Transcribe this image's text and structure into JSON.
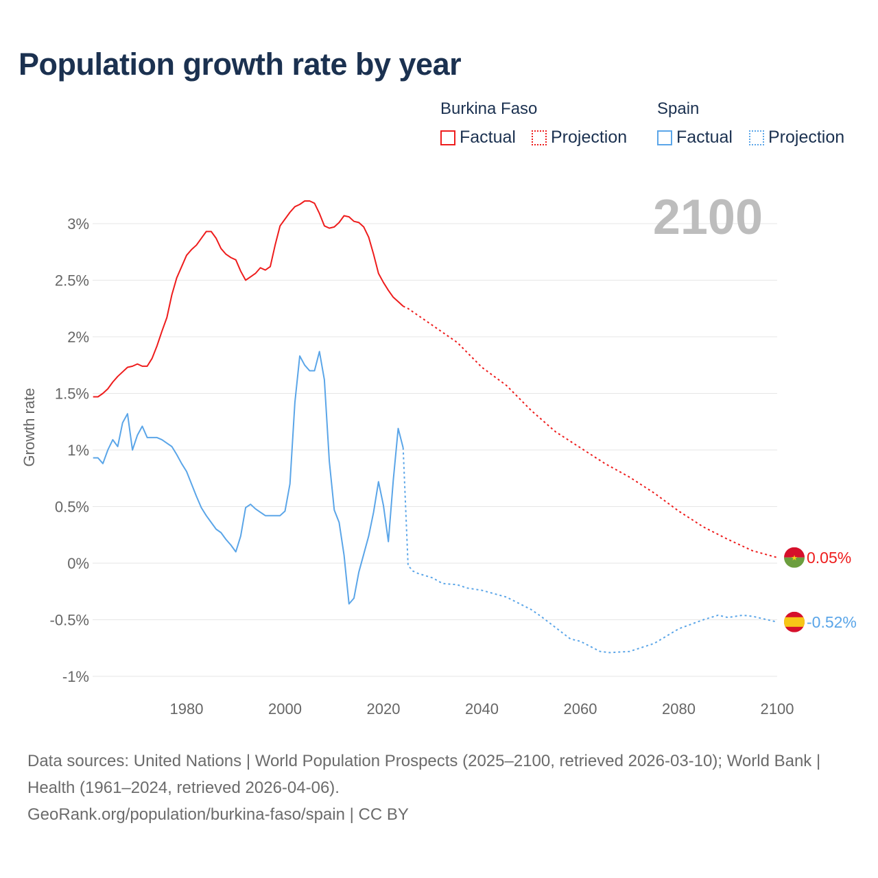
{
  "title": "Population growth rate by year",
  "legend": {
    "groups": [
      {
        "name": "Burkina Faso",
        "color": "#ee1c1c",
        "factual": "Factual",
        "projection": "Projection"
      },
      {
        "name": "Spain",
        "color": "#5aa5e8",
        "factual": "Factual",
        "projection": "Projection"
      }
    ]
  },
  "current_year": "2100",
  "source": {
    "line1": "Data sources: United Nations | World Population Prospects (2025–2100, retrieved 2026-03-10); World Bank | Health (1961–2024, retrieved 2026-04-06).",
    "line2": "GeoRank.org/population/burkina-faso/spain | CC BY"
  },
  "chart_data": {
    "type": "line",
    "title": "Population growth rate by year",
    "xlabel": "",
    "ylabel": "Growth rate",
    "xlim": [
      1961,
      2100
    ],
    "ylim": [
      -1.05,
      3.3
    ],
    "x_ticks": [
      1980,
      2000,
      2020,
      2040,
      2060,
      2080,
      2100
    ],
    "y_ticks": [
      {
        "v": 3,
        "label": "3%"
      },
      {
        "v": 2.5,
        "label": "2.5%"
      },
      {
        "v": 2,
        "label": "2%"
      },
      {
        "v": 1.5,
        "label": "1.5%"
      },
      {
        "v": 1,
        "label": "1%"
      },
      {
        "v": 0.5,
        "label": "0.5%"
      },
      {
        "v": 0,
        "label": "0%"
      },
      {
        "v": -0.5,
        "label": "-0.5%"
      },
      {
        "v": -1,
        "label": "-1%"
      }
    ],
    "grid": true,
    "legend_position": "top-right",
    "series": [
      {
        "name": "Burkina Faso",
        "color": "#ee1c1c",
        "end_label": "0.05%",
        "flag": "burkina-faso",
        "factual": {
          "x": [
            1961,
            1962,
            1963,
            1964,
            1965,
            1966,
            1967,
            1968,
            1969,
            1970,
            1971,
            1972,
            1973,
            1974,
            1975,
            1976,
            1977,
            1978,
            1979,
            1980,
            1981,
            1982,
            1983,
            1984,
            1985,
            1986,
            1987,
            1988,
            1989,
            1990,
            1991,
            1992,
            1993,
            1994,
            1995,
            1996,
            1997,
            1998,
            1999,
            2000,
            2001,
            2002,
            2003,
            2004,
            2005,
            2006,
            2007,
            2008,
            2009,
            2010,
            2011,
            2012,
            2013,
            2014,
            2015,
            2016,
            2017,
            2018,
            2019,
            2020,
            2021,
            2022,
            2023,
            2024
          ],
          "y": [
            1.47,
            1.47,
            1.5,
            1.54,
            1.6,
            1.65,
            1.69,
            1.73,
            1.74,
            1.76,
            1.74,
            1.74,
            1.81,
            1.92,
            2.05,
            2.17,
            2.37,
            2.52,
            2.62,
            2.72,
            2.77,
            2.81,
            2.87,
            2.93,
            2.93,
            2.87,
            2.78,
            2.73,
            2.7,
            2.68,
            2.58,
            2.5,
            2.53,
            2.56,
            2.61,
            2.59,
            2.62,
            2.81,
            2.98,
            3.04,
            3.1,
            3.15,
            3.17,
            3.2,
            3.2,
            3.18,
            3.09,
            2.98,
            2.96,
            2.97,
            3.01,
            3.07,
            3.06,
            3.02,
            3.01,
            2.97,
            2.88,
            2.73,
            2.56,
            2.48,
            2.41,
            2.35,
            2.31,
            2.27
          ]
        },
        "projection": {
          "x": [
            2024,
            2025,
            2030,
            2035,
            2040,
            2045,
            2050,
            2055,
            2060,
            2065,
            2070,
            2075,
            2080,
            2085,
            2090,
            2095,
            2100
          ],
          "y": [
            2.27,
            2.25,
            2.1,
            1.95,
            1.73,
            1.57,
            1.35,
            1.16,
            1.02,
            0.88,
            0.76,
            0.62,
            0.46,
            0.32,
            0.21,
            0.11,
            0.05
          ]
        }
      },
      {
        "name": "Spain",
        "color": "#5aa5e8",
        "end_label": "-0.52%",
        "flag": "spain",
        "factual": {
          "x": [
            1961,
            1962,
            1963,
            1964,
            1965,
            1966,
            1967,
            1968,
            1969,
            1970,
            1971,
            1972,
            1973,
            1974,
            1975,
            1976,
            1977,
            1978,
            1979,
            1980,
            1981,
            1982,
            1983,
            1984,
            1985,
            1986,
            1987,
            1988,
            1989,
            1990,
            1991,
            1992,
            1993,
            1994,
            1995,
            1996,
            1997,
            1998,
            1999,
            2000,
            2001,
            2002,
            2003,
            2004,
            2005,
            2006,
            2007,
            2008,
            2009,
            2010,
            2011,
            2012,
            2013,
            2014,
            2015,
            2016,
            2017,
            2018,
            2019,
            2020,
            2021,
            2022,
            2023,
            2024
          ],
          "y": [
            0.93,
            0.93,
            0.88,
            1.0,
            1.09,
            1.03,
            1.24,
            1.32,
            1.0,
            1.13,
            1.21,
            1.11,
            1.11,
            1.11,
            1.09,
            1.06,
            1.03,
            0.96,
            0.88,
            0.81,
            0.7,
            0.59,
            0.49,
            0.42,
            0.36,
            0.3,
            0.27,
            0.21,
            0.16,
            0.1,
            0.24,
            0.49,
            0.52,
            0.48,
            0.45,
            0.42,
            0.42,
            0.42,
            0.42,
            0.46,
            0.7,
            1.42,
            1.83,
            1.75,
            1.7,
            1.7,
            1.87,
            1.62,
            0.9,
            0.47,
            0.36,
            0.07,
            -0.36,
            -0.31,
            -0.08,
            0.08,
            0.24,
            0.45,
            0.72,
            0.51,
            0.19,
            0.73,
            1.19,
            1.02
          ]
        },
        "projection": {
          "x": [
            2024,
            2025,
            2026,
            2027,
            2030,
            2032,
            2035,
            2037,
            2040,
            2045,
            2050,
            2052,
            2055,
            2058,
            2060,
            2064,
            2066,
            2070,
            2075,
            2080,
            2085,
            2088,
            2090,
            2093,
            2095,
            2100
          ],
          "y": [
            1.02,
            -0.02,
            -0.07,
            -0.09,
            -0.13,
            -0.18,
            -0.19,
            -0.22,
            -0.24,
            -0.3,
            -0.41,
            -0.47,
            -0.57,
            -0.67,
            -0.69,
            -0.78,
            -0.79,
            -0.78,
            -0.71,
            -0.58,
            -0.5,
            -0.46,
            -0.48,
            -0.46,
            -0.47,
            -0.52
          ]
        }
      }
    ]
  }
}
